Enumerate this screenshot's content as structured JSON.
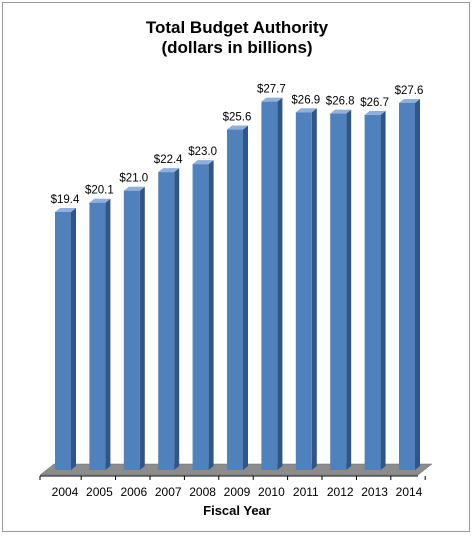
{
  "chart_data": {
    "type": "bar",
    "title": [
      "Total Budget Authority",
      "(dollars in billions)"
    ],
    "xlabel": "Fiscal Year",
    "ylabel": "",
    "categories": [
      "2004",
      "2005",
      "2006",
      "2007",
      "2008",
      "2009",
      "2010",
      "2011",
      "2012",
      "2013",
      "2014"
    ],
    "values": [
      19.4,
      20.1,
      21.0,
      22.4,
      23.0,
      25.6,
      27.7,
      26.9,
      26.8,
      26.7,
      27.6
    ],
    "data_labels": [
      "$19.4",
      "$20.1",
      "$21.0",
      "$22.4",
      "$23.0",
      "$25.6",
      "$27.7",
      "$26.9",
      "$26.8",
      "$26.7",
      "$27.6"
    ],
    "ylim": [
      0,
      28.8
    ],
    "grid": false,
    "bar_color": "#4f81bd",
    "bar_side_color": "#2f5684",
    "bar_top_color": "#8fb0dc",
    "floor_color": "#8c8c8c"
  }
}
